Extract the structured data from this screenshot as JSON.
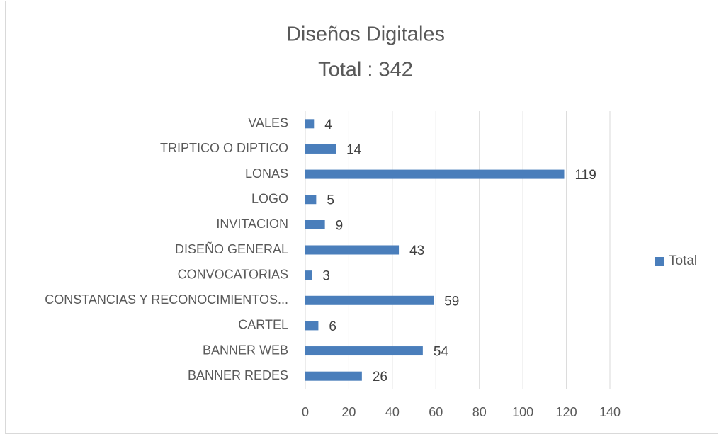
{
  "chart_data": {
    "type": "barh",
    "title": "Diseños Digitales",
    "subtitle": "Total : 342",
    "categories": [
      "VALES",
      "TRIPTICO O DIPTICO",
      "LONAS",
      "LOGO",
      "INVITACION",
      "DISEÑO GENERAL",
      "CONVOCATORIAS",
      "CONSTANCIAS Y RECONOCIMIENTOS...",
      "CARTEL",
      "BANNER WEB",
      "BANNER REDES"
    ],
    "series": [
      {
        "name": "Total",
        "color": "#4a7ebb",
        "values": [
          4,
          14,
          119,
          5,
          9,
          43,
          3,
          59,
          6,
          54,
          26
        ]
      }
    ],
    "xlim": [
      0,
      140
    ],
    "xticks": [
      0,
      20,
      40,
      60,
      80,
      100,
      120,
      140
    ],
    "grid": true,
    "legend": "right"
  }
}
